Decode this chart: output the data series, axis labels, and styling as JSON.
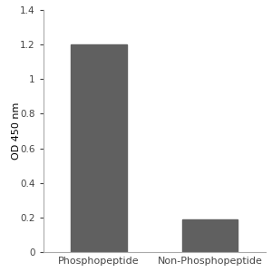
{
  "categories": [
    "Phosphopeptide",
    "Non-Phosphopeptide"
  ],
  "values": [
    1.2,
    0.19
  ],
  "bar_color": "#606060",
  "bar_width": 0.5,
  "ylabel": "OD 450 nm",
  "ylim": [
    0,
    1.4
  ],
  "yticks": [
    0,
    0.2,
    0.4,
    0.6,
    0.8,
    1.0,
    1.2,
    1.4
  ],
  "ytick_labels": [
    "0",
    "0.2",
    "0.4",
    "0.6",
    "0.8",
    "1",
    "1.2",
    "1.4"
  ],
  "ylabel_fontsize": 8,
  "tick_fontsize": 7.5,
  "xlabel_fontsize": 8,
  "background_color": "#ffffff",
  "spine_color": "#aaaaaa"
}
